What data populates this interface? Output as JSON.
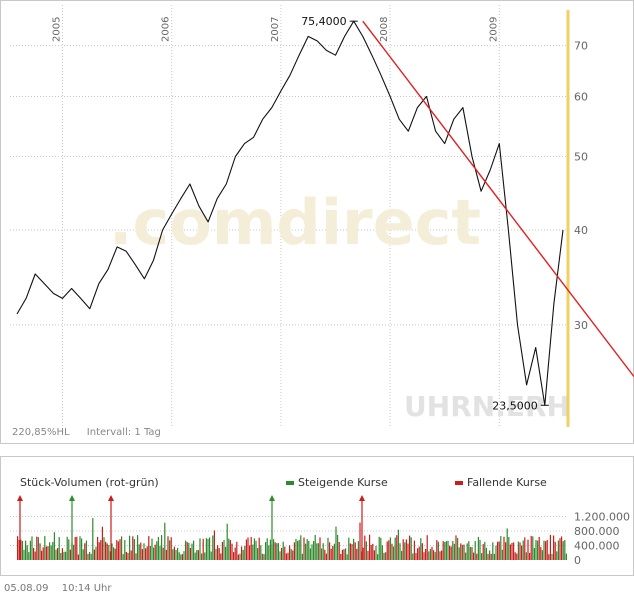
{
  "chart_data": [
    {
      "type": "line",
      "title": "",
      "x_labels": [
        "2005",
        "2006",
        "2007",
        "2008",
        "2009"
      ],
      "y_ticks": [
        30,
        40,
        50,
        60,
        70
      ],
      "ylim": [
        22,
        78
      ],
      "y_scale": "log",
      "grid": true,
      "watermark": ".comdirect",
      "ticker_watermark": "UHRN.ERH",
      "annotations": {
        "high": "75,4000",
        "low": "23,5000"
      },
      "info": {
        "performance": "220,85%HL",
        "interval": "Intervall: 1 Tag"
      },
      "series": [
        {
          "x": [
            "2004-08",
            "2004-09",
            "2004-10",
            "2004-11",
            "2004-12",
            "2005-01",
            "2005-02",
            "2005-03",
            "2005-04",
            "2005-05",
            "2005-06",
            "2005-07",
            "2005-08",
            "2005-09",
            "2005-10",
            "2005-11",
            "2005-12",
            "2006-01",
            "2006-02",
            "2006-03",
            "2006-04",
            "2006-05",
            "2006-06",
            "2006-07",
            "2006-08",
            "2006-09",
            "2006-10",
            "2006-11",
            "2006-12",
            "2007-01",
            "2007-02",
            "2007-03",
            "2007-04",
            "2007-05",
            "2007-06",
            "2007-07",
            "2007-08",
            "2007-09",
            "2007-10",
            "2007-11",
            "2007-12",
            "2008-01",
            "2008-02",
            "2008-03",
            "2008-04",
            "2008-05",
            "2008-06",
            "2008-07",
            "2008-08",
            "2008-09",
            "2008-10",
            "2008-11",
            "2008-12",
            "2009-01",
            "2009-02",
            "2009-03",
            "2009-04",
            "2009-05",
            "2009-06",
            "2009-07",
            "2009-08"
          ],
          "y": [
            31,
            32.5,
            35,
            34,
            33,
            32.5,
            33.5,
            32.5,
            31.5,
            34,
            35.5,
            38,
            37.5,
            36,
            34.5,
            36.5,
            40,
            42,
            44,
            46,
            43,
            41,
            44,
            46,
            50,
            52,
            53,
            56,
            58,
            61,
            64,
            68,
            72,
            71,
            69,
            68,
            72,
            75.4,
            72,
            68,
            64,
            60,
            56,
            54,
            58,
            60,
            54,
            52,
            56,
            58,
            50,
            45,
            48,
            52,
            40,
            30,
            25,
            28,
            23.5,
            32,
            40
          ]
        },
        {
          "name": "",
          "x": [
            "2007-10",
            "2009-08"
          ],
          "y": [
            75.4,
            34
          ],
          "style": "trendline",
          "color": "#e02020"
        }
      ]
    },
    {
      "type": "bar",
      "title": "Stück-Volumen (rot-grün)",
      "legend": [
        {
          "label": "Steigende Kurse",
          "color": "#2d8a2d"
        },
        {
          "label": "Fallende Kurse",
          "color": "#cc1c1c"
        }
      ],
      "y_ticks": [
        0,
        400000,
        800000,
        1200000
      ],
      "y_tick_labels": [
        "0",
        "400.000",
        "800.000",
        "1.200.000"
      ],
      "ylim": [
        0,
        1600000
      ],
      "description_values": "daily volume, typically 100.000 – 900.000 with spikes above 1.600.000"
    }
  ],
  "footer": {
    "date": "05.08.09",
    "time": "10:14 Uhr"
  },
  "colors": {
    "price_line": "#111111",
    "trendline": "#e02020",
    "current_marker": "#f0d060",
    "grid": "#c8c8c8",
    "up": "#2d8a2d",
    "down": "#cc1c1c"
  }
}
